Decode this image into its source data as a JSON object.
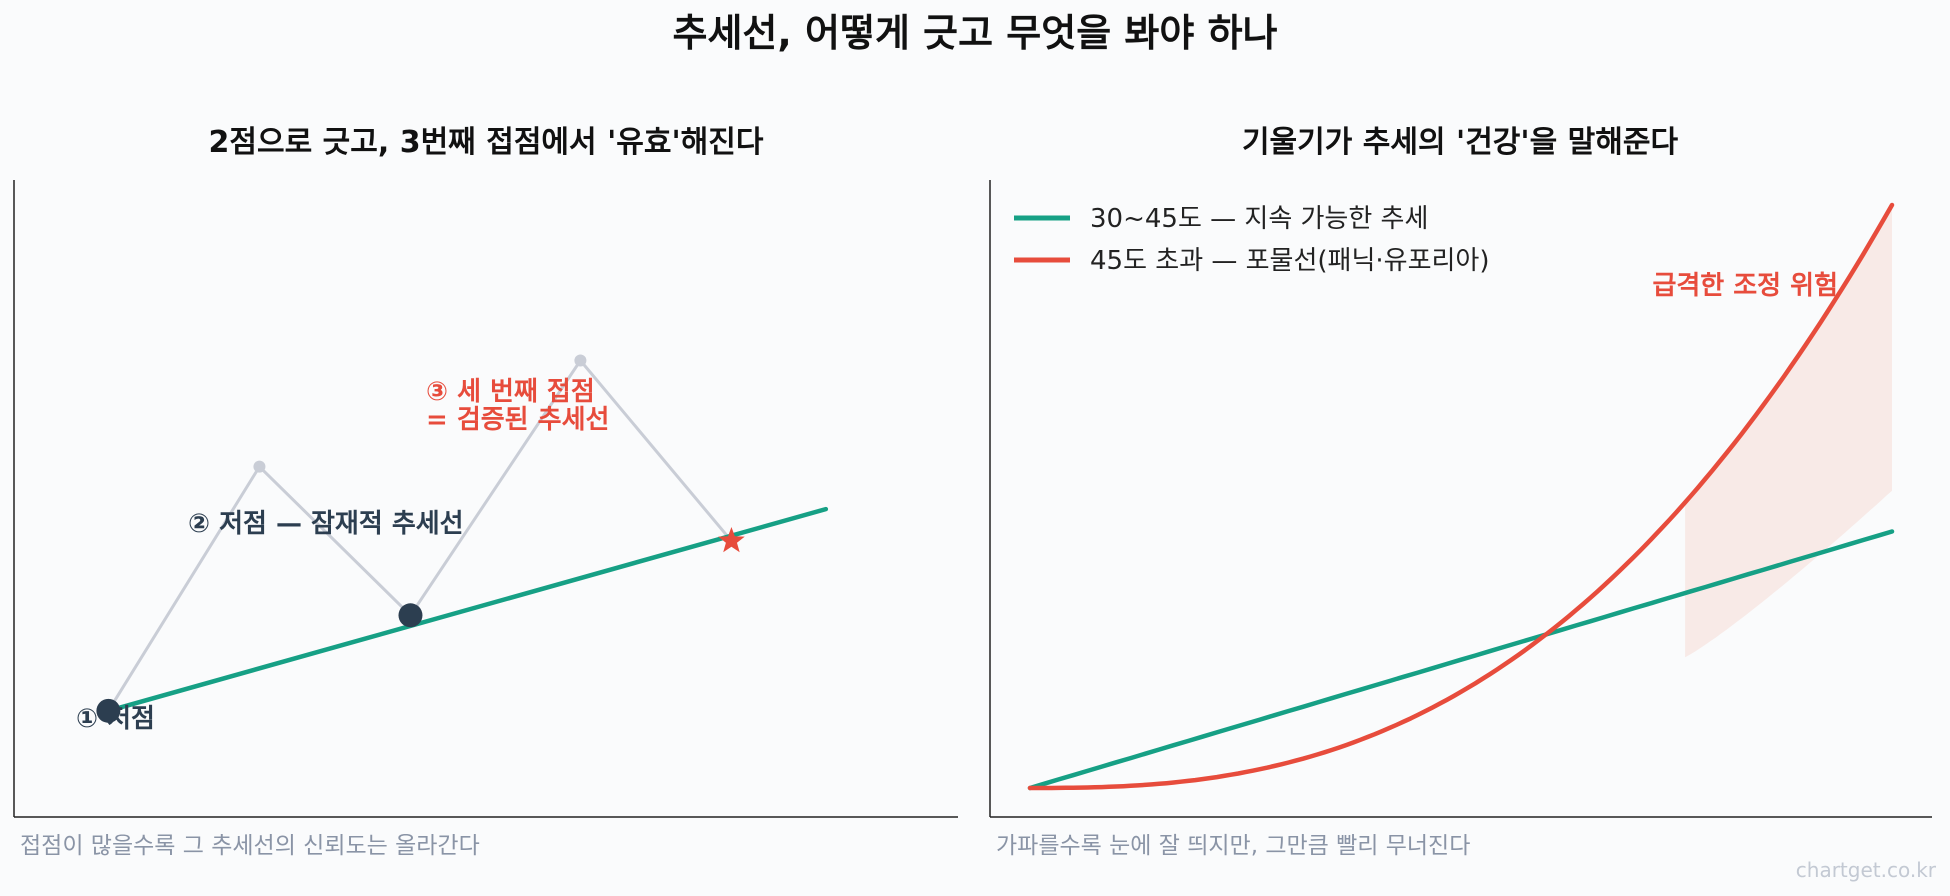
{
  "title": "추세선, 어떻게 긋고 무엇을 봐야 하나",
  "watermark": "chartget.co.kr",
  "colors": {
    "trend_green": "#16a085",
    "parabolic_red": "#e74c3c",
    "price_gray": "#c9cdd6",
    "pivot_dark": "#2c3e50",
    "danger_fill": "#f7e6e3"
  },
  "chart_data": [
    {
      "type": "line",
      "title": "2점으로 긋고, 3번째 접점에서 '유효'해진다",
      "caption": "접점이 많을수록 그 추세선의 신뢰도는 올라간다",
      "price_path": [
        [
          1,
          2
        ],
        [
          2.6,
          6.6
        ],
        [
          4.2,
          3.8
        ],
        [
          6,
          8.6
        ],
        [
          7.6,
          5.2
        ]
      ],
      "trendline": {
        "from": [
          1,
          2
        ],
        "to": [
          8.6,
          5.8
        ]
      },
      "touch_points": [
        [
          1,
          2
        ],
        [
          4.2,
          3.8
        ],
        [
          7.6,
          5.2
        ]
      ],
      "annotations": {
        "first": "① 저점",
        "second": "② 저점 — 잠재적 추세선",
        "third_line1": "③ 세 번째 접점",
        "third_line2": "= 검증된 추세선"
      },
      "xlim": [
        0,
        10
      ],
      "ylim": [
        0,
        12
      ]
    },
    {
      "type": "line",
      "title": "기울기가 추세의 '건강'을 말해준다",
      "caption": "가파를수록 눈에 잘 띄지만, 그만큼 빨리 무너진다",
      "series": [
        {
          "name": "30~45도 — 지속 가능한 추세",
          "color": "#16a085",
          "kind": "linear",
          "start": 0,
          "end": 0.44
        },
        {
          "name": "45도 초과 — 포물선(패닉·유포리아)",
          "color": "#e74c3c",
          "kind": "parabolic",
          "start": 0,
          "end": 1.0
        }
      ],
      "danger_zone": {
        "label": "급격한 조정 위험",
        "x_from": 0.76,
        "x_to": 1.0
      },
      "xlim": [
        0,
        1
      ],
      "ylim": [
        0,
        1
      ]
    }
  ]
}
